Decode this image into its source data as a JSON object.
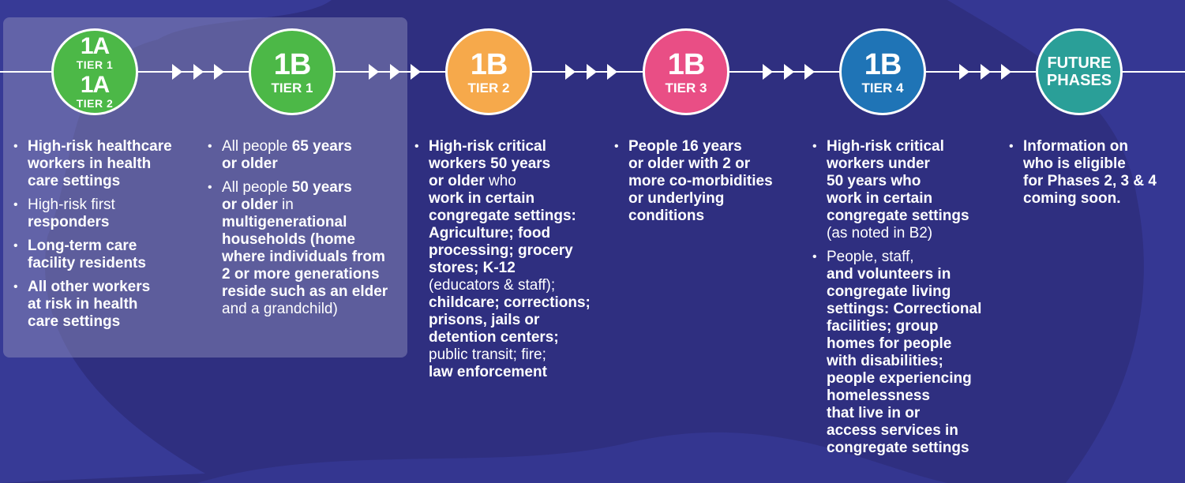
{
  "colors": {
    "background": "#2f2f80",
    "green": "#4cb847",
    "orange": "#f6a94b",
    "pink": "#e94e85",
    "blue": "#1f74b6",
    "teal": "#2a9f98"
  },
  "phases": [
    {
      "title_a": "1A",
      "tier_a": "TIER 1",
      "title_b": "1A",
      "tier_b": "TIER 2",
      "items": [
        [
          "High-risk healthcare",
          "workers in health",
          "care settings"
        ],
        [
          "High-risk first",
          "responders"
        ],
        [
          "Long-term care",
          "facility residents"
        ],
        [
          "All other workers",
          "at risk in health",
          "care settings"
        ]
      ]
    },
    {
      "title": "1B",
      "tier": "TIER 1",
      "items": [
        {
          "l1a": "All people ",
          "l1b": "65 years",
          "l2": "or older"
        },
        {
          "l1a": "All people ",
          "l1b": "50 years",
          "l2a": "or older",
          "l2b": " in",
          "rest": [
            "multigenerational",
            "households (home",
            "where individuals from",
            "2 or more generations",
            "reside such as an elder",
            "and a grandchild)"
          ]
        }
      ]
    },
    {
      "title": "1B",
      "tier": "TIER 2",
      "item": {
        "l1": "High-risk critical",
        "l2a": "workers ",
        "l2b": "50 years",
        "l3a": "or older",
        "l3b": " who",
        "rest": [
          "work in certain",
          "congregate settings:",
          "Agriculture; food",
          "processing; grocery",
          "stores; K-12",
          "(educators & staff);",
          "childcare; corrections;",
          "prisons, jails or",
          "detention centers;",
          "public transit; fire;",
          "law enforcement"
        ]
      }
    },
    {
      "title": "1B",
      "tier": "TIER 3",
      "item": {
        "l1a": "People ",
        "l1b": "16 years",
        "l2a": "or older",
        "l2b": " with 2 or",
        "rest": [
          "more co-morbidities",
          "or underlying",
          "conditions"
        ]
      }
    },
    {
      "title": "1B",
      "tier": "TIER 4",
      "items": [
        {
          "l1": "High-risk critical",
          "l2a": "workers ",
          "l2b": "under",
          "l3a": "50 years",
          "l3b": " who",
          "rest": [
            "work in certain",
            "congregate settings",
            "(as noted in B2)"
          ]
        },
        {
          "lines": [
            "People, staff,",
            "and volunteers in",
            "congregate living",
            "settings: Correctional",
            "facilities; group",
            "homes for people",
            "with disabilities;",
            "people experiencing",
            "homelessness",
            "that live in or",
            "access services in",
            "congregate settings"
          ]
        }
      ]
    },
    {
      "title_l1": "FUTURE",
      "title_l2": "PHASES",
      "item": [
        "Information on",
        "who is eligible",
        "for Phases 2, 3 & 4",
        "coming soon."
      ]
    }
  ]
}
